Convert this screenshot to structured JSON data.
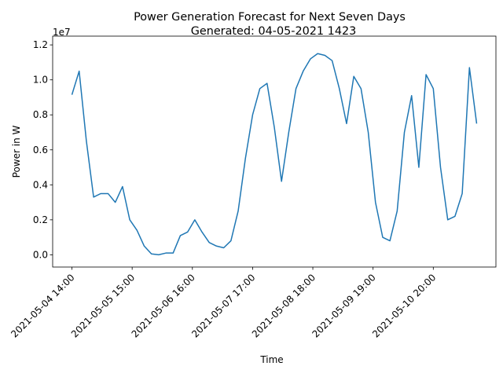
{
  "chart_data": {
    "type": "line",
    "title": [
      "Power Generation Forecast for Next Seven Days",
      "Generated: 04-05-2021 1423"
    ],
    "x_label": "Time",
    "y_label": "Power in W",
    "y_offset_label": "1e7",
    "x": [
      "2021-05-04 14:00",
      "2021-05-04 17:00",
      "2021-05-04 20:00",
      "2021-05-04 23:00",
      "2021-05-05 02:00",
      "2021-05-05 05:00",
      "2021-05-05 08:00",
      "2021-05-05 11:00",
      "2021-05-05 14:00",
      "2021-05-05 17:00",
      "2021-05-05 20:00",
      "2021-05-05 23:00",
      "2021-05-06 02:00",
      "2021-05-06 05:00",
      "2021-05-06 08:00",
      "2021-05-06 11:00",
      "2021-05-06 14:00",
      "2021-05-06 17:00",
      "2021-05-06 20:00",
      "2021-05-06 23:00",
      "2021-05-07 02:00",
      "2021-05-07 05:00",
      "2021-05-07 08:00",
      "2021-05-07 11:00",
      "2021-05-07 14:00",
      "2021-05-07 17:00",
      "2021-05-07 20:00",
      "2021-05-07 23:00",
      "2021-05-08 02:00",
      "2021-05-08 05:00",
      "2021-05-08 08:00",
      "2021-05-08 11:00",
      "2021-05-08 14:00",
      "2021-05-08 17:00",
      "2021-05-08 20:00",
      "2021-05-08 23:00",
      "2021-05-09 02:00",
      "2021-05-09 05:00",
      "2021-05-09 08:00",
      "2021-05-09 11:00",
      "2021-05-09 14:00",
      "2021-05-09 17:00",
      "2021-05-09 20:00",
      "2021-05-09 23:00",
      "2021-05-10 02:00",
      "2021-05-10 05:00",
      "2021-05-10 08:00",
      "2021-05-10 11:00",
      "2021-05-10 14:00",
      "2021-05-10 17:00",
      "2021-05-10 20:00",
      "2021-05-10 23:00",
      "2021-05-11 02:00",
      "2021-05-11 05:00",
      "2021-05-11 08:00",
      "2021-05-11 11:00",
      "2021-05-11 14:00"
    ],
    "series": [
      {
        "color": "#1f77b4",
        "values": [
          9150000.0,
          10500000.0,
          6500000.0,
          3300000.0,
          3500000.0,
          3500000.0,
          3000000.0,
          3900000.0,
          2000000.0,
          1400000.0,
          500000.0,
          50000.0,
          0,
          100000.0,
          100000.0,
          1100000.0,
          1300000.0,
          2000000.0,
          1300000.0,
          700000.0,
          500000.0,
          400000.0,
          800000.0,
          2500000.0,
          5500000.0,
          8000000.0,
          9500000.0,
          9800000.0,
          7300000.0,
          4200000.0,
          7000000.0,
          9500000.0,
          10500000.0,
          11200000.0,
          11500000.0,
          11400000.0,
          11100000.0,
          9500000.0,
          7500000.0,
          10200000.0,
          9500000.0,
          7000000.0,
          3000000.0,
          1000000.0,
          800000.0,
          2500000.0,
          7000000.0,
          9100000.0,
          5000000.0,
          10300000.0,
          9500000.0,
          5000000.0,
          2000000.0,
          2200000.0,
          3500000.0,
          10700000.0,
          7500000.0
        ]
      }
    ],
    "xlim": [
      "2021-05-04 06:00",
      "2021-05-11 22:00"
    ],
    "xticks": [
      "2021-05-04 14:00",
      "2021-05-05 15:00",
      "2021-05-06 16:00",
      "2021-05-07 17:00",
      "2021-05-08 18:00",
      "2021-05-09 19:00",
      "2021-05-10 20:00"
    ],
    "ylim": [
      -700000,
      12500000
    ],
    "yticks": [
      {
        "value": 0,
        "label": "0.0"
      },
      {
        "value": 2000000,
        "label": "0.2"
      },
      {
        "value": 4000000,
        "label": "0.4"
      },
      {
        "value": 6000000,
        "label": "0.6"
      },
      {
        "value": 8000000,
        "label": "0.8"
      },
      {
        "value": 10000000,
        "label": "1.0"
      },
      {
        "value": 12000000,
        "label": "1.2"
      }
    ]
  }
}
